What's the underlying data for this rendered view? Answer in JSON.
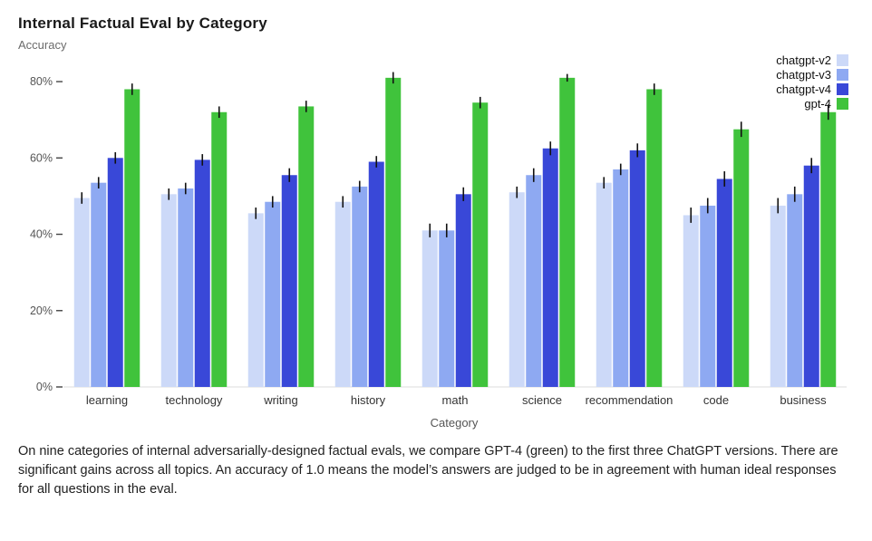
{
  "caption": {
    "text": "On nine categories of internal adversarially-designed factual evals, we compare GPT-4 (green) to the first three ChatGPT versions. There are significant gains across all topics. An accuracy of 1.0 means the model’s answers are judged to be in agreement with human ideal responses for all questions in the eval."
  },
  "chart_data": {
    "type": "bar",
    "title": "Internal Factual Eval by Category",
    "ylabel": "Accuracy",
    "xlabel": "Category",
    "ylim": [
      0,
      85
    ],
    "yticks": [
      0,
      20,
      40,
      60,
      80
    ],
    "ytick_format": "percent",
    "grid": false,
    "legend_position": "top-right",
    "error_bar_color": "#111111",
    "categories": [
      "learning",
      "technology",
      "writing",
      "history",
      "math",
      "science",
      "recommendation",
      "code",
      "business"
    ],
    "series": [
      {
        "name": "chatgpt-v2",
        "color": "#ccd9f8",
        "values": [
          49.5,
          50.5,
          45.5,
          48.5,
          41,
          51,
          53.5,
          45,
          47.5
        ],
        "errors": [
          1.5,
          1.5,
          1.5,
          1.5,
          1.8,
          1.5,
          1.5,
          2,
          2
        ]
      },
      {
        "name": "chatgpt-v3",
        "color": "#8ea9f2",
        "values": [
          53.5,
          52,
          48.5,
          52.5,
          41,
          55.5,
          57,
          47.5,
          50.5
        ],
        "errors": [
          1.5,
          1.5,
          1.5,
          1.5,
          1.8,
          1.8,
          1.5,
          2,
          2
        ]
      },
      {
        "name": "chatgpt-v4",
        "color": "#3948d8",
        "values": [
          60,
          59.5,
          55.5,
          59,
          50.5,
          62.5,
          62,
          54.5,
          58
        ],
        "errors": [
          1.5,
          1.5,
          1.8,
          1.5,
          1.8,
          1.8,
          1.8,
          2,
          2
        ]
      },
      {
        "name": "gpt-4",
        "color": "#40c33c",
        "values": [
          78,
          72,
          73.5,
          81,
          74.5,
          81,
          78,
          67.5,
          72
        ],
        "errors": [
          1.5,
          1.5,
          1.5,
          1.5,
          1.5,
          1,
          1.5,
          2,
          2
        ]
      }
    ]
  }
}
